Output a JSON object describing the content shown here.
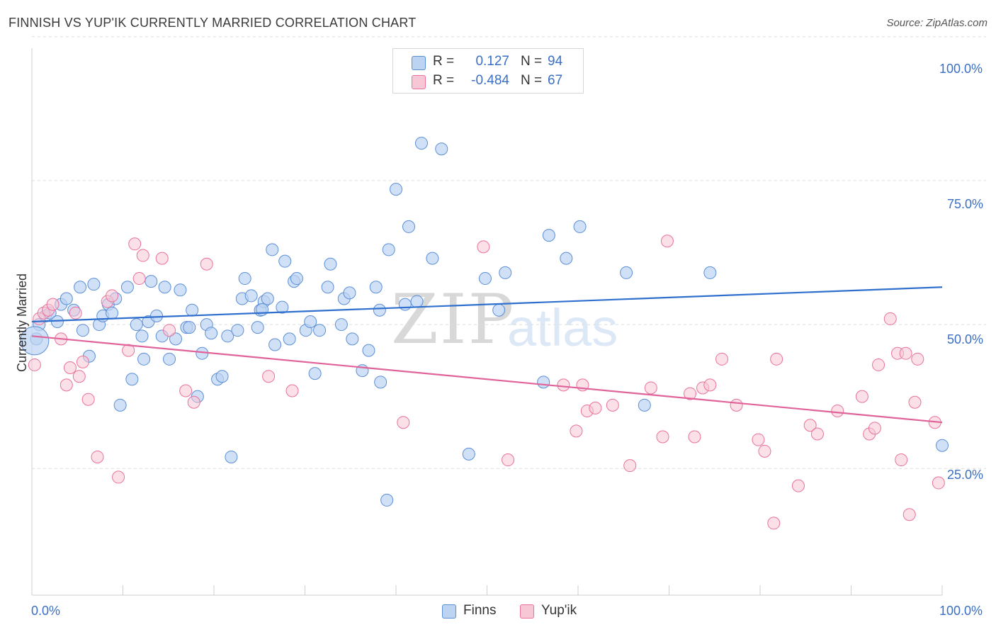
{
  "title": "FINNISH VS YUP'IK CURRENTLY MARRIED CORRELATION CHART",
  "source": "Source: ZipAtlas.com",
  "watermark": {
    "zip": "ZIP",
    "atlas": "atlas"
  },
  "legend": {
    "rows": [
      {
        "label": "R =",
        "r": "0.127",
        "n_label": "N =",
        "n": "94",
        "color": "#a9c8ef"
      },
      {
        "label": "R =",
        "r": "-0.484",
        "n_label": "N =",
        "n": "67",
        "color": "#f6b6c9"
      }
    ]
  },
  "bottom_legend": {
    "finns": "Finns",
    "yupik": "Yup'ik"
  },
  "axes": {
    "ylabel": "Currently Married",
    "x_min_label": "0.0%",
    "x_max_label": "100.0%",
    "y_ticks": [
      "100.0%",
      "75.0%",
      "50.0%",
      "25.0%"
    ]
  },
  "colors": {
    "finns": "#5b8fd6",
    "finns_fill": "#bcd3f2",
    "yupik": "#e8729a",
    "yupik_fill": "#f8c7d6",
    "finns_line": "#2f6fce",
    "yupik_line": "#e0639a",
    "accent": "#3a6fc4"
  },
  "chart_data": {
    "type": "scatter",
    "title": "FINNISH VS YUP'IK CURRENTLY MARRIED CORRELATION CHART",
    "xlabel": "",
    "ylabel": "Currently Married",
    "xlim": [
      0,
      100
    ],
    "ylim": [
      3,
      98
    ],
    "x_ticks": [
      "0.0%",
      "100.0%"
    ],
    "y_ticks": [
      "25.0%",
      "50.0%",
      "75.0%",
      "100.0%"
    ],
    "grid": true,
    "legend_position": "top-center",
    "series": [
      {
        "name": "Finns",
        "R": 0.127,
        "N": 94,
        "trend": [
          [
            0,
            50.5
          ],
          [
            100,
            56.5
          ]
        ],
        "points": [
          [
            0.5,
            47.5
          ],
          [
            0.8,
            50
          ],
          [
            1.5,
            51.5
          ],
          [
            2,
            52
          ],
          [
            2.8,
            50.5
          ],
          [
            3.2,
            53.5
          ],
          [
            3.8,
            54.5
          ],
          [
            4.6,
            52.5
          ],
          [
            5.3,
            56.5
          ],
          [
            5.6,
            49
          ],
          [
            6.3,
            44.5
          ],
          [
            6.8,
            57
          ],
          [
            7.4,
            50
          ],
          [
            7.8,
            51.5
          ],
          [
            8.4,
            53.5
          ],
          [
            8.8,
            52
          ],
          [
            9.2,
            54.5
          ],
          [
            9.7,
            36
          ],
          [
            10.5,
            56.5
          ],
          [
            11,
            40.5
          ],
          [
            11.5,
            50
          ],
          [
            12.1,
            48
          ],
          [
            12.3,
            44
          ],
          [
            12.8,
            50.5
          ],
          [
            13.1,
            57.5
          ],
          [
            13.7,
            51.5
          ],
          [
            14.3,
            48
          ],
          [
            14.6,
            56.5
          ],
          [
            15.1,
            44
          ],
          [
            15.8,
            47.5
          ],
          [
            16.3,
            56
          ],
          [
            17,
            49.5
          ],
          [
            17.3,
            49.5
          ],
          [
            17.6,
            52.5
          ],
          [
            18.2,
            37.5
          ],
          [
            18.7,
            45
          ],
          [
            19.2,
            50
          ],
          [
            19.7,
            48.5
          ],
          [
            20.4,
            40.5
          ],
          [
            20.9,
            41
          ],
          [
            21.5,
            48
          ],
          [
            21.9,
            27
          ],
          [
            22.6,
            49
          ],
          [
            23.1,
            54.5
          ],
          [
            23.4,
            58
          ],
          [
            24.1,
            55
          ],
          [
            24.8,
            49.5
          ],
          [
            25.1,
            52.5
          ],
          [
            25.5,
            54
          ],
          [
            25.9,
            54.5
          ],
          [
            26.4,
            63
          ],
          [
            26.7,
            46.5
          ],
          [
            27.5,
            53
          ],
          [
            27.8,
            61
          ],
          [
            28.3,
            47.5
          ],
          [
            28.8,
            57.5
          ],
          [
            29.1,
            58
          ],
          [
            30.1,
            49
          ],
          [
            30.6,
            50.5
          ],
          [
            31.6,
            49
          ],
          [
            31.1,
            41.5
          ],
          [
            32.5,
            56.5
          ],
          [
            32.8,
            60.5
          ],
          [
            34,
            50
          ],
          [
            34.3,
            54.5
          ],
          [
            34.9,
            55.5
          ],
          [
            35.2,
            47.5
          ],
          [
            36.3,
            42
          ],
          [
            37,
            45.5
          ],
          [
            37.8,
            56.5
          ],
          [
            38.2,
            52.5
          ],
          [
            38.3,
            40
          ],
          [
            39.2,
            63
          ],
          [
            40,
            73.5
          ],
          [
            41,
            53.5
          ],
          [
            41.4,
            67
          ],
          [
            42.3,
            54
          ],
          [
            42.8,
            81.5
          ],
          [
            44,
            61.5
          ],
          [
            45,
            80.5
          ],
          [
            49.8,
            58
          ],
          [
            51.3,
            52.5
          ],
          [
            52,
            59
          ],
          [
            56.2,
            40
          ],
          [
            56.8,
            65.5
          ],
          [
            58.7,
            61.5
          ],
          [
            60.2,
            67
          ],
          [
            65.3,
            59
          ],
          [
            67.3,
            36
          ],
          [
            74.5,
            59
          ],
          [
            100,
            29
          ],
          [
            48,
            27.5
          ],
          [
            39,
            19.5
          ],
          [
            25.3,
            52.6
          ]
        ]
      },
      {
        "name": "Yup'ik",
        "R": -0.484,
        "N": 67,
        "trend": [
          [
            0,
            48
          ],
          [
            100,
            33
          ]
        ],
        "points": [
          [
            0.3,
            43
          ],
          [
            0.8,
            51
          ],
          [
            1.3,
            52
          ],
          [
            1.8,
            52.5
          ],
          [
            2.3,
            53.5
          ],
          [
            3.2,
            47.5
          ],
          [
            3.8,
            39.5
          ],
          [
            4.2,
            42.5
          ],
          [
            4.8,
            52
          ],
          [
            5.2,
            41
          ],
          [
            5.6,
            43.5
          ],
          [
            6.2,
            37
          ],
          [
            7.2,
            27
          ],
          [
            8.3,
            54
          ],
          [
            8.8,
            55
          ],
          [
            9.5,
            23.5
          ],
          [
            10.6,
            45.5
          ],
          [
            11.3,
            64
          ],
          [
            11.8,
            58
          ],
          [
            14.3,
            61.5
          ],
          [
            15.1,
            49
          ],
          [
            16.9,
            38.5
          ],
          [
            17.8,
            36.5
          ],
          [
            19.2,
            60.5
          ],
          [
            26,
            41
          ],
          [
            28.6,
            38.5
          ],
          [
            40.8,
            33
          ],
          [
            49.6,
            63.5
          ],
          [
            52.3,
            26.5
          ],
          [
            58.4,
            39.5
          ],
          [
            59.8,
            31.5
          ],
          [
            60.5,
            39.5
          ],
          [
            61,
            35
          ],
          [
            61.9,
            35.5
          ],
          [
            63.8,
            36
          ],
          [
            65.7,
            25.5
          ],
          [
            68,
            39
          ],
          [
            69.3,
            30.5
          ],
          [
            69.8,
            64.5
          ],
          [
            72.3,
            38
          ],
          [
            72.8,
            30.5
          ],
          [
            73.7,
            39
          ],
          [
            74.5,
            39.5
          ],
          [
            75.8,
            44
          ],
          [
            77.4,
            36
          ],
          [
            79.8,
            30
          ],
          [
            80.5,
            28
          ],
          [
            81.5,
            15.5
          ],
          [
            81.8,
            44
          ],
          [
            84.2,
            22
          ],
          [
            85.5,
            32.5
          ],
          [
            86.3,
            31
          ],
          [
            88.5,
            35
          ],
          [
            91.2,
            37.5
          ],
          [
            92,
            31
          ],
          [
            92.6,
            32
          ],
          [
            93,
            43
          ],
          [
            94.3,
            51
          ],
          [
            95.1,
            45
          ],
          [
            95.5,
            26.5
          ],
          [
            96,
            45
          ],
          [
            96.4,
            17
          ],
          [
            97,
            36.5
          ],
          [
            97.3,
            44
          ],
          [
            99.2,
            33
          ],
          [
            99.6,
            22.5
          ],
          [
            12.2,
            62
          ]
        ]
      }
    ]
  }
}
